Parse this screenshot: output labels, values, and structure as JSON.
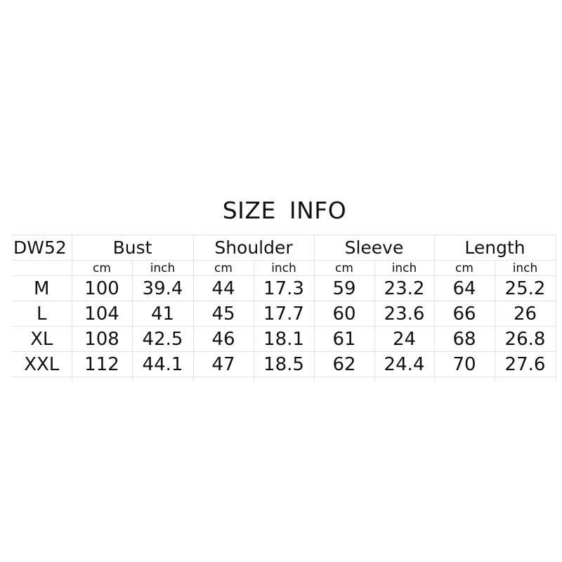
{
  "title": "SIZE INFO",
  "table": {
    "model": "DW52",
    "groups": [
      "Bust",
      "Shoulder",
      "Sleeve",
      "Length"
    ],
    "units": [
      "cm",
      "inch"
    ],
    "rows": [
      {
        "size": "M",
        "values": [
          "100",
          "39.4",
          "44",
          "17.3",
          "59",
          "23.2",
          "64",
          "25.2"
        ]
      },
      {
        "size": "L",
        "values": [
          "104",
          "41",
          "45",
          "17.7",
          "60",
          "23.6",
          "66",
          "26"
        ]
      },
      {
        "size": "XL",
        "values": [
          "108",
          "42.5",
          "46",
          "18.1",
          "61",
          "24",
          "68",
          "26.8"
        ]
      },
      {
        "size": "XXL",
        "values": [
          "112",
          "44.1",
          "47",
          "18.5",
          "62",
          "24.4",
          "70",
          "27.6"
        ]
      }
    ]
  },
  "colors": {
    "grid": "#e2e2e2",
    "text": "#111111",
    "background": "#ffffff"
  }
}
